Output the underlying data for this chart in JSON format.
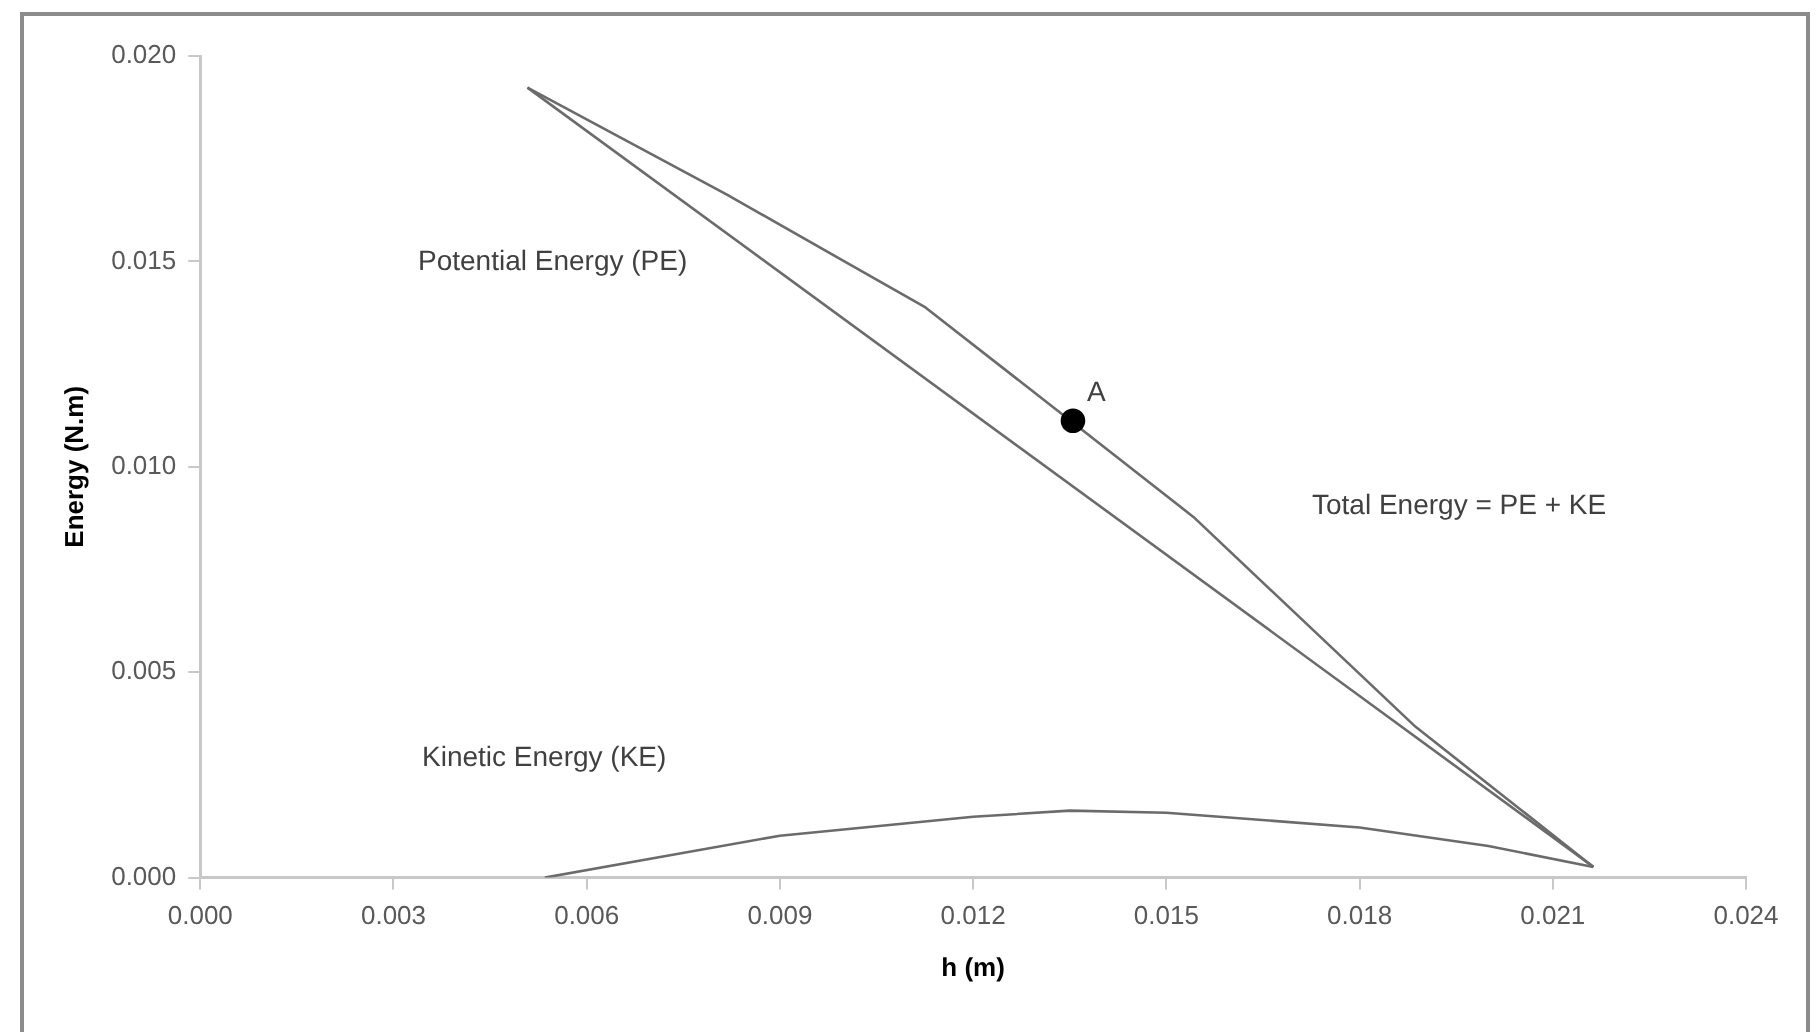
{
  "chart_data": {
    "type": "line",
    "xlabel": "h (m)",
    "ylabel": "Energy (N.m)",
    "xlim": [
      0,
      0.024
    ],
    "xticks": [
      {
        "value": 0,
        "label": "0.000"
      },
      {
        "value": 0.003,
        "label": "0.003"
      },
      {
        "value": 0.006,
        "label": "0.006"
      },
      {
        "value": 0.009,
        "label": "0.009"
      },
      {
        "value": 0.012,
        "label": "0.012"
      },
      {
        "value": 0.015,
        "label": "0.015"
      },
      {
        "value": 0.018,
        "label": "0.018"
      },
      {
        "value": 0.021,
        "label": "0.021"
      },
      {
        "value": 0.024,
        "label": "0.024"
      }
    ],
    "ylim": [
      0,
      0.02
    ],
    "yticks": [
      {
        "value": 0,
        "label": "0.000"
      },
      {
        "value": 0.005,
        "label": "0.005"
      },
      {
        "value": 0.01,
        "label": "0.010"
      },
      {
        "value": 0.015,
        "label": "0.015"
      },
      {
        "value": 0.02,
        "label": "0.020"
      }
    ],
    "grid": false,
    "legend": false,
    "marker": "none",
    "line_style": "solid",
    "series": [
      {
        "name": "Potential Energy (PE)",
        "color": "#6b6b6b",
        "x": [
          0.00508,
          0.02163
        ],
        "values": [
          0.01923,
          0.00026
        ]
      },
      {
        "name": "Total Energy = PE + KE",
        "color": "#6b6b6b",
        "x": [
          0.00508,
          0.00817,
          0.01126,
          0.01542,
          0.01887,
          0.02163
        ],
        "values": [
          0.01923,
          0.01663,
          0.01388,
          0.00878,
          0.00367,
          0.00026
        ]
      },
      {
        "name": "Kinetic Energy (KE)",
        "color": "#6b6b6b",
        "x": [
          0.00535,
          0.009,
          0.012,
          0.0135,
          0.015,
          0.018,
          0.02,
          0.02163
        ],
        "values": [
          0,
          0.00102,
          0.00148,
          0.00163,
          0.00158,
          0.00122,
          0.00077,
          0.00026
        ]
      },
      {
        "type": "scatter",
        "color": "#000000",
        "marker": "circle",
        "x": [
          0.01355
        ],
        "values": [
          0.01112
        ]
      }
    ],
    "annotations": [
      {
        "text": "A",
        "x": 0.01355,
        "y": 0.01112
      }
    ]
  }
}
